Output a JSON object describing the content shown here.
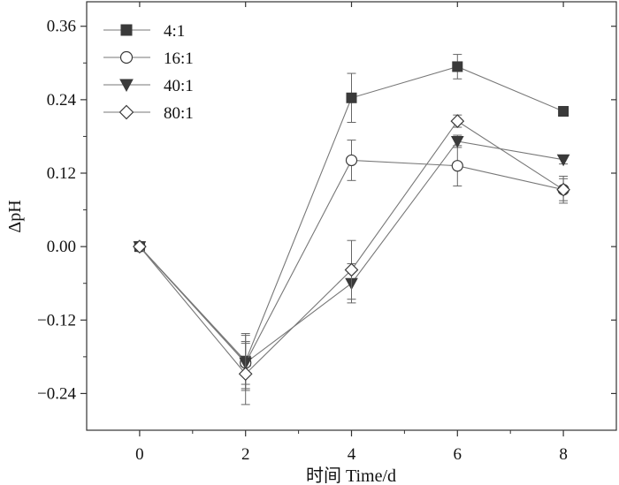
{
  "chart_data": {
    "type": "line",
    "title": "",
    "xlabel": "时间 Time/d",
    "ylabel": "ΔpH",
    "x": [
      0,
      2,
      4,
      6,
      8
    ],
    "xlim": [
      -1,
      9
    ],
    "ylim": [
      -0.3,
      0.4
    ],
    "xticks": [
      0,
      2,
      4,
      6,
      8
    ],
    "xtick_labels": [
      "0",
      "2",
      "4",
      "6",
      "8"
    ],
    "yticks": [
      -0.24,
      -0.12,
      0.0,
      0.12,
      0.24,
      0.36
    ],
    "ytick_labels": [
      "−0.24",
      "−0.12",
      "0.00",
      "0.12",
      "0.24",
      "0.36"
    ],
    "grid": false,
    "legend_position": "top-left",
    "series": [
      {
        "name": "4:1",
        "marker": "square-filled",
        "values": [
          0.0,
          -0.187,
          0.243,
          0.294,
          0.221
        ],
        "errors": [
          0.0,
          0.045,
          0.04,
          0.02,
          0.008
        ]
      },
      {
        "name": "16:1",
        "marker": "circle-open",
        "values": [
          0.0,
          -0.19,
          0.141,
          0.132,
          0.093
        ],
        "errors": [
          0.0,
          0.045,
          0.033,
          0.033,
          0.018
        ]
      },
      {
        "name": "40:1",
        "marker": "triangle-down-filled",
        "values": [
          0.0,
          -0.19,
          -0.06,
          0.172,
          0.142
        ],
        "errors": [
          0.0,
          0.035,
          0.032,
          0.01,
          0.007
        ]
      },
      {
        "name": "80:1",
        "marker": "diamond-open",
        "values": [
          0.0,
          -0.208,
          -0.038,
          0.205,
          0.093
        ],
        "errors": [
          0.0,
          0.05,
          0.048,
          0.01,
          0.022
        ]
      }
    ]
  }
}
